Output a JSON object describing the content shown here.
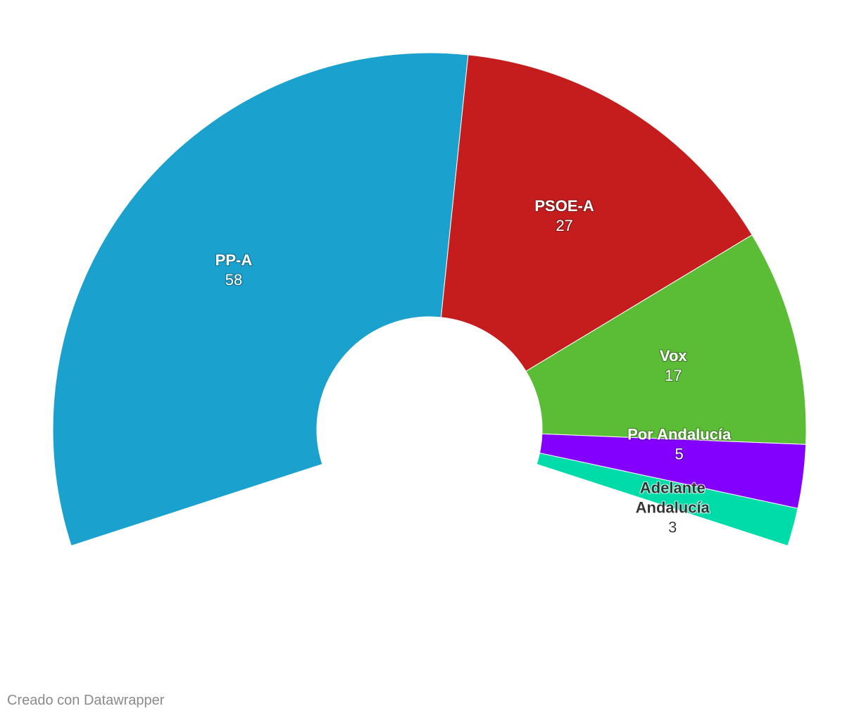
{
  "chart_data": {
    "type": "pie",
    "variant": "parliament-semicircle-donut",
    "total_seats": 110,
    "series": [
      {
        "name": "PP-A",
        "label_lines": [
          "PP-A"
        ],
        "value": 58,
        "color": "#1aa1cd",
        "label_color": "#ffffff"
      },
      {
        "name": "PSOE-A",
        "label_lines": [
          "PSOE-A"
        ],
        "value": 27,
        "color": "#c51d1d",
        "label_color": "#ffffff"
      },
      {
        "name": "Vox",
        "label_lines": [
          "Vox"
        ],
        "value": 17,
        "color": "#5bbd36",
        "label_color": "#ffffff"
      },
      {
        "name": "Por Andalucía",
        "label_lines": [
          "Por Andalucía"
        ],
        "value": 5,
        "color": "#8300ff",
        "label_color": "#ffffff"
      },
      {
        "name": "Adelante Andalucía",
        "label_lines": [
          "Adelante",
          "Andalucía"
        ],
        "value": 3,
        "color": "#00dbaa",
        "label_color": "#333333"
      }
    ],
    "legend": "none"
  },
  "footer": {
    "credit": "Creado con Datawrapper"
  }
}
